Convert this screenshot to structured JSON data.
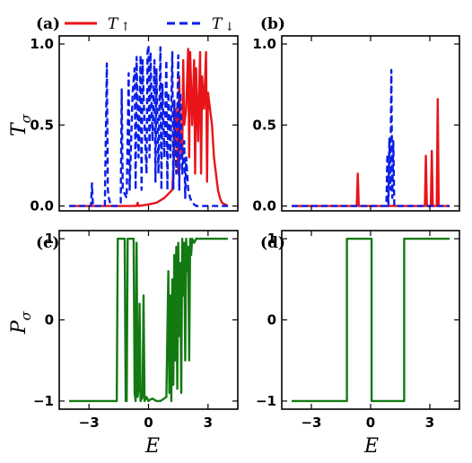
{
  "chart_data": [
    {
      "panel": "(a)",
      "type": "line",
      "ylabel": "T_σ",
      "ylim": [
        -0.03,
        1.05
      ],
      "xlim": [
        -4.5,
        4.5
      ],
      "yticks": [
        "0.0",
        "0.5",
        "1.0"
      ],
      "ytick_values": [
        0.0,
        0.5,
        1.0
      ],
      "xtick_values": [
        -3,
        0,
        3
      ],
      "series": [
        {
          "name": "T↑",
          "color": "#e8141a",
          "style": "solid",
          "x": [
            -4,
            -1.5,
            -0.6,
            -0.55,
            -0.5,
            0.0,
            0.4,
            0.8,
            1.2,
            1.4,
            1.5,
            1.55,
            1.6,
            1.7,
            1.75,
            1.8,
            1.9,
            2.0,
            2.05,
            2.1,
            2.2,
            2.3,
            2.35,
            2.4,
            2.5,
            2.6,
            2.65,
            2.7,
            2.8,
            2.9,
            2.95,
            3.0,
            3.1,
            3.2,
            3.3,
            3.4,
            3.5,
            3.6,
            3.7,
            4.0
          ],
          "y": [
            0.0,
            0.0,
            0.0,
            0.02,
            0.0,
            0.01,
            0.02,
            0.05,
            0.1,
            0.6,
            0.2,
            0.8,
            0.4,
            0.3,
            0.9,
            0.5,
            0.6,
            0.97,
            0.3,
            0.95,
            0.5,
            0.9,
            0.2,
            0.85,
            0.4,
            0.95,
            0.2,
            0.8,
            0.6,
            0.95,
            0.15,
            0.7,
            0.6,
            0.5,
            0.3,
            0.2,
            0.1,
            0.05,
            0.02,
            0.0
          ]
        },
        {
          "name": "T↓",
          "color": "#0a1ee6",
          "style": "dashed",
          "x": [
            -4,
            -2.9,
            -2.85,
            -2.8,
            -2.2,
            -2.1,
            -2.05,
            -2.0,
            -1.9,
            -1.6,
            -1.4,
            -1.35,
            -1.3,
            -1.1,
            -1.0,
            -0.95,
            -0.9,
            -0.8,
            -0.7,
            -0.65,
            -0.6,
            -0.5,
            -0.4,
            -0.35,
            -0.3,
            -0.2,
            -0.1,
            -0.05,
            0.0,
            0.05,
            0.1,
            0.2,
            0.3,
            0.35,
            0.4,
            0.5,
            0.6,
            0.65,
            0.7,
            0.8,
            0.9,
            0.95,
            1.0,
            1.1,
            1.2,
            1.25,
            1.3,
            1.4,
            1.5,
            1.55,
            1.6,
            1.7,
            1.8,
            1.85,
            1.9,
            2.0,
            2.1,
            2.2,
            2.3,
            2.4,
            2.6,
            3.0,
            4.0
          ],
          "y": [
            0.0,
            0.0,
            0.14,
            0.0,
            0.0,
            0.88,
            0.1,
            0.05,
            0.0,
            0.0,
            0.02,
            0.72,
            0.1,
            0.05,
            0.82,
            0.1,
            0.3,
            0.7,
            0.85,
            0.1,
            0.92,
            0.3,
            0.93,
            0.1,
            0.9,
            0.5,
            0.2,
            0.95,
            0.99,
            0.3,
            0.95,
            0.4,
            0.9,
            0.15,
            0.85,
            0.2,
            0.98,
            0.1,
            0.75,
            0.3,
            0.9,
            0.1,
            0.7,
            0.3,
            0.95,
            0.1,
            0.65,
            0.2,
            0.93,
            0.1,
            0.7,
            0.2,
            0.4,
            0.05,
            0.3,
            0.1,
            0.05,
            0.02,
            0.01,
            0.0,
            0.0,
            0.0,
            0.0
          ]
        }
      ]
    },
    {
      "panel": "(b)",
      "type": "line",
      "ylim": [
        -0.03,
        1.05
      ],
      "xlim": [
        -4.5,
        4.5
      ],
      "yticks": [
        "0.0",
        "0.5",
        "1.0"
      ],
      "ytick_values": [
        0.0,
        0.5,
        1.0
      ],
      "xtick_values": [
        -3,
        0,
        3
      ],
      "series": [
        {
          "name": "T↑",
          "color": "#e8141a",
          "style": "solid",
          "x": [
            -4,
            -0.7,
            -0.65,
            -0.6,
            2.75,
            2.8,
            2.85,
            3.05,
            3.1,
            3.15,
            3.35,
            3.4,
            3.45,
            4.0
          ],
          "y": [
            0.0,
            0.0,
            0.2,
            0.0,
            0.0,
            0.31,
            0.0,
            0.0,
            0.34,
            0.0,
            0.0,
            0.66,
            0.0,
            0.0
          ]
        },
        {
          "name": "T↓",
          "color": "#0a1ee6",
          "style": "dashed",
          "x": [
            -4,
            0.8,
            0.85,
            0.9,
            0.95,
            1.0,
            1.05,
            1.1,
            1.15,
            1.2,
            1.25,
            4.0
          ],
          "y": [
            0.0,
            0.0,
            0.32,
            0.0,
            0.42,
            0.1,
            0.84,
            0.05,
            0.4,
            0.0,
            0.0,
            0.0
          ]
        }
      ]
    },
    {
      "panel": "(c)",
      "type": "line",
      "xlabel": "E",
      "ylabel": "P_σ",
      "ylim": [
        -1.1,
        1.1
      ],
      "xlim": [
        -4.5,
        4.5
      ],
      "yticks": [
        "−1",
        "0",
        "1"
      ],
      "ytick_values": [
        -1,
        0,
        1
      ],
      "xticks": [
        "−3",
        "0",
        "3"
      ],
      "xtick_values": [
        -3,
        0,
        3
      ],
      "series": [
        {
          "name": "P",
          "color": "#137a12",
          "style": "solid",
          "x": [
            -4.0,
            -1.6,
            -1.55,
            -1.2,
            -1.15,
            -1.1,
            -1.05,
            -1.0,
            -0.75,
            -0.7,
            -0.65,
            -0.6,
            -0.55,
            -0.5,
            -0.45,
            -0.4,
            -0.3,
            -0.25,
            -0.2,
            -0.1,
            0.0,
            0.1,
            0.2,
            0.4,
            0.6,
            0.9,
            1.0,
            1.05,
            1.1,
            1.15,
            1.2,
            1.25,
            1.3,
            1.35,
            1.4,
            1.45,
            1.5,
            1.55,
            1.6,
            1.65,
            1.7,
            1.75,
            1.8,
            1.85,
            1.9,
            1.95,
            2.0,
            2.05,
            2.1,
            2.15,
            2.2,
            2.3,
            2.4,
            2.5,
            2.6,
            3.0,
            4.0
          ],
          "y": [
            -1.0,
            -1.0,
            1.0,
            1.0,
            -1.0,
            -1.0,
            1.0,
            1.0,
            1.0,
            -0.9,
            -1.0,
            0.95,
            -0.95,
            -0.85,
            0.2,
            -1.0,
            -0.95,
            0.3,
            -1.0,
            -0.95,
            -1.0,
            -0.98,
            -0.97,
            -1.0,
            -1.0,
            -0.95,
            0.6,
            -0.9,
            0.3,
            -1.0,
            0.5,
            -0.8,
            0.8,
            -0.5,
            0.9,
            -0.85,
            0.95,
            -0.2,
            0.7,
            -0.9,
            1.0,
            0.3,
            0.95,
            -0.5,
            1.0,
            0.6,
            0.9,
            -0.5,
            1.0,
            0.8,
            1.0,
            0.95,
            1.0,
            1.0,
            1.0,
            1.0,
            1.0
          ]
        }
      ]
    },
    {
      "panel": "(d)",
      "type": "line",
      "xlabel": "E",
      "ylim": [
        -1.1,
        1.1
      ],
      "xlim": [
        -4.5,
        4.5
      ],
      "yticks": [
        "−1",
        "0",
        "1"
      ],
      "ytick_values": [
        -1,
        0,
        1
      ],
      "xticks": [
        "−3",
        "0",
        "3"
      ],
      "xtick_values": [
        -3,
        0,
        3
      ],
      "series": [
        {
          "name": "P",
          "color": "#137a12",
          "style": "solid",
          "x": [
            -4.0,
            -1.2,
            -1.2,
            0.05,
            0.05,
            1.7,
            1.7,
            4.0
          ],
          "y": [
            -1.0,
            -1.0,
            1.0,
            1.0,
            -1.0,
            -1.0,
            1.0,
            1.0
          ]
        }
      ]
    }
  ],
  "panels": {
    "a_label": "(a)",
    "b_label": "(b)",
    "c_label": "(c)",
    "d_label": "(d)"
  },
  "axis_labels": {
    "top_ylabel": "T",
    "top_ylabel_sub": "σ",
    "bottom_ylabel": "P",
    "bottom_ylabel_sub": "σ",
    "xlabel_left": "E",
    "xlabel_right": "E"
  },
  "legend": {
    "up_label": "T",
    "up_arrow": "↑",
    "down_label": "T",
    "down_arrow": "↓",
    "placement": "top"
  },
  "colors": {
    "up": "#e8141a",
    "down": "#0a1ee6",
    "pol": "#137a12"
  }
}
